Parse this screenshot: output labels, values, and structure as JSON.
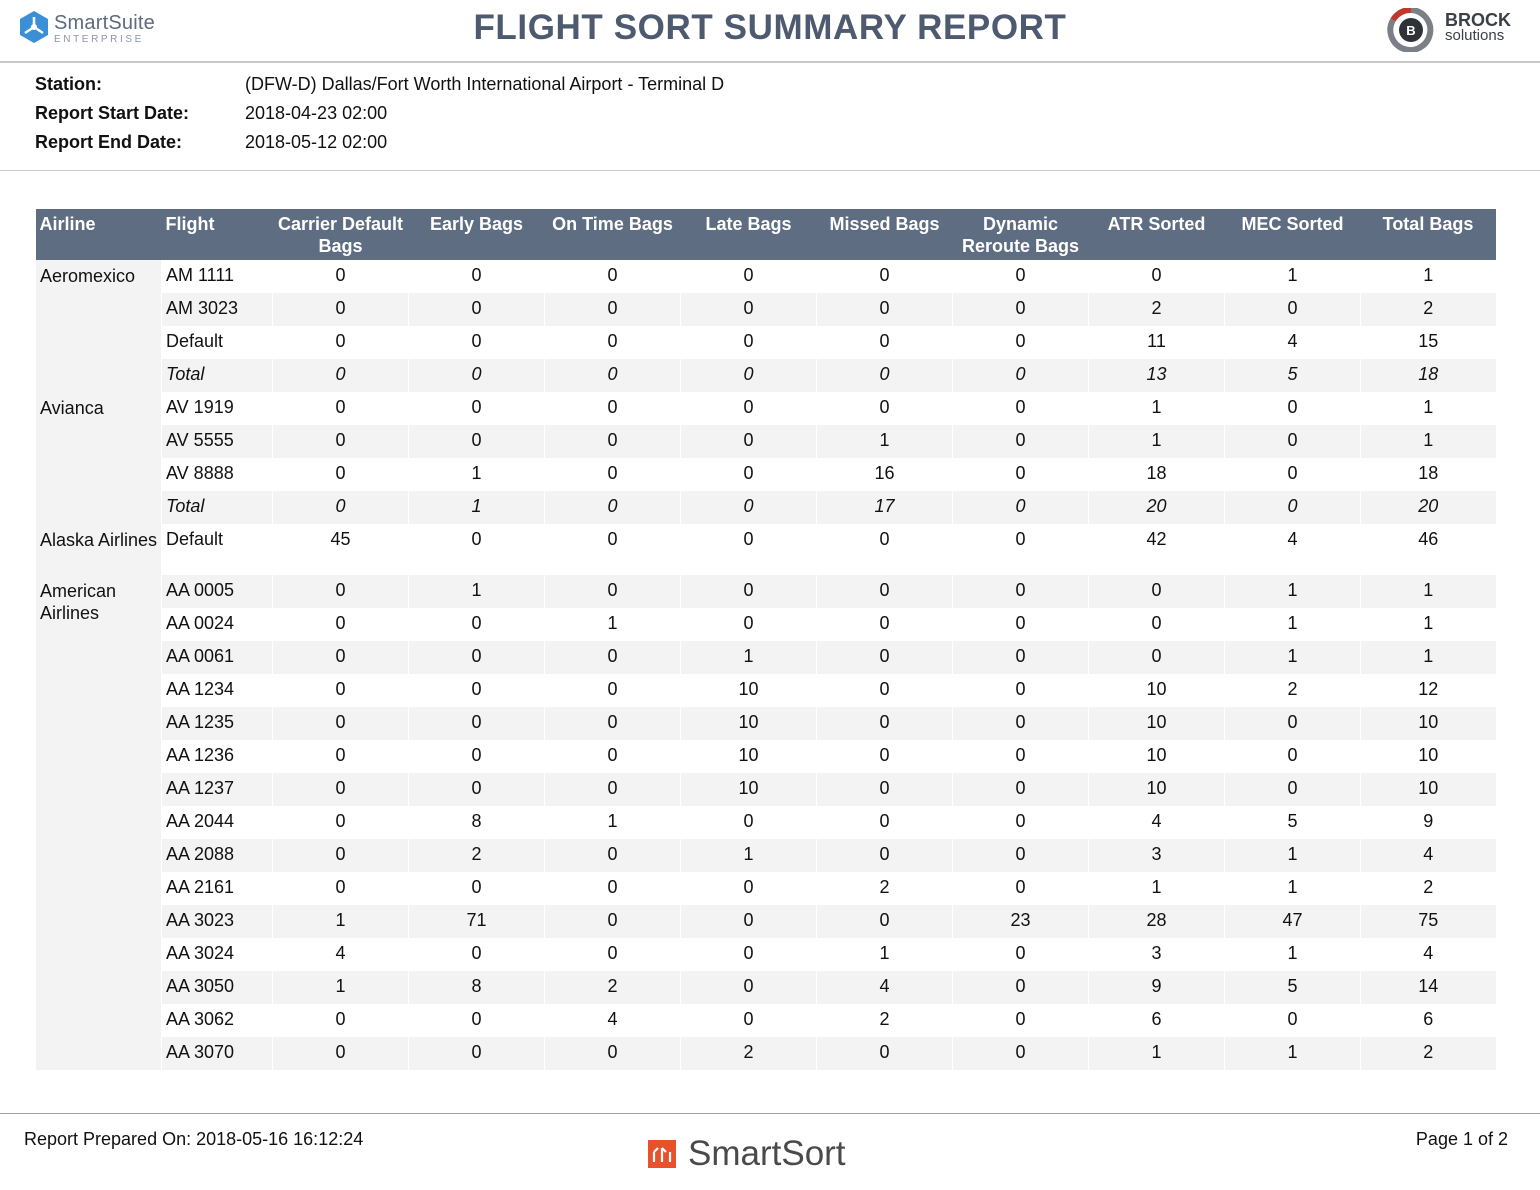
{
  "header": {
    "left_logo": {
      "name": "SmartSuite",
      "sub": "ENTERPRISE",
      "icon": "smartsuite-hex-icon",
      "color": "#3a8fd6"
    },
    "title": "FLIGHT SORT SUMMARY REPORT",
    "right_logo": {
      "name": "BROCK",
      "sub": "solutions",
      "icon": "brock-b-icon",
      "accent": "#c0392b"
    }
  },
  "info": {
    "station_label": "Station:",
    "station_value": "(DFW-D) Dallas/Fort Worth International Airport - Terminal D",
    "start_label": "Report Start Date:",
    "start_value": "2018-04-23 02:00",
    "end_label": "Report End Date:",
    "end_value": "2018-05-12 02:00"
  },
  "table": {
    "columns": [
      "Airline",
      "Flight",
      "Carrier Default Bags",
      "Early  Bags",
      "On Time Bags",
      "Late Bags",
      "Missed Bags",
      "Dynamic Reroute Bags",
      "ATR Sorted",
      "MEC Sorted",
      "Total  Bags"
    ],
    "header_color": "#5f6d83",
    "groups": [
      {
        "airline": "Aeromexico",
        "rows": [
          {
            "flight": "AM 1111",
            "values": [
              "0",
              "0",
              "0",
              "0",
              "0",
              "0",
              "0",
              "1",
              "1"
            ]
          },
          {
            "flight": "AM 3023",
            "values": [
              "0",
              "0",
              "0",
              "0",
              "0",
              "0",
              "2",
              "0",
              "2"
            ]
          },
          {
            "flight": "Default",
            "values": [
              "0",
              "0",
              "0",
              "0",
              "0",
              "0",
              "11",
              "4",
              "15"
            ]
          },
          {
            "flight": "Total",
            "values": [
              "0",
              "0",
              "0",
              "0",
              "0",
              "0",
              "13",
              "5",
              "18"
            ],
            "total": true
          }
        ]
      },
      {
        "airline": "Avianca",
        "rows": [
          {
            "flight": "AV 1919",
            "values": [
              "0",
              "0",
              "0",
              "0",
              "0",
              "0",
              "1",
              "0",
              "1"
            ]
          },
          {
            "flight": "AV 5555",
            "values": [
              "0",
              "0",
              "0",
              "0",
              "1",
              "0",
              "1",
              "0",
              "1"
            ]
          },
          {
            "flight": "AV 8888",
            "values": [
              "0",
              "1",
              "0",
              "0",
              "16",
              "0",
              "18",
              "0",
              "18"
            ]
          },
          {
            "flight": "Total",
            "values": [
              "0",
              "1",
              "0",
              "0",
              "17",
              "0",
              "20",
              "0",
              "20"
            ],
            "total": true
          }
        ]
      },
      {
        "airline": "Alaska Airlines",
        "rows": [
          {
            "flight": "Default",
            "values": [
              "45",
              "0",
              "0",
              "0",
              "0",
              "0",
              "42",
              "4",
              "46"
            ]
          }
        ]
      },
      {
        "airline": "American Airlines",
        "rows": [
          {
            "flight": "AA 0005",
            "values": [
              "0",
              "1",
              "0",
              "0",
              "0",
              "0",
              "0",
              "1",
              "1"
            ]
          },
          {
            "flight": "AA 0024",
            "values": [
              "0",
              "0",
              "1",
              "0",
              "0",
              "0",
              "0",
              "1",
              "1"
            ]
          },
          {
            "flight": "AA 0061",
            "values": [
              "0",
              "0",
              "0",
              "1",
              "0",
              "0",
              "0",
              "1",
              "1"
            ]
          },
          {
            "flight": "AA 1234",
            "values": [
              "0",
              "0",
              "0",
              "10",
              "0",
              "0",
              "10",
              "2",
              "12"
            ]
          },
          {
            "flight": "AA 1235",
            "values": [
              "0",
              "0",
              "0",
              "10",
              "0",
              "0",
              "10",
              "0",
              "10"
            ]
          },
          {
            "flight": "AA 1236",
            "values": [
              "0",
              "0",
              "0",
              "10",
              "0",
              "0",
              "10",
              "0",
              "10"
            ]
          },
          {
            "flight": "AA 1237",
            "values": [
              "0",
              "0",
              "0",
              "10",
              "0",
              "0",
              "10",
              "0",
              "10"
            ]
          },
          {
            "flight": "AA 2044",
            "values": [
              "0",
              "8",
              "1",
              "0",
              "0",
              "0",
              "4",
              "5",
              "9"
            ]
          },
          {
            "flight": "AA 2088",
            "values": [
              "0",
              "2",
              "0",
              "1",
              "0",
              "0",
              "3",
              "1",
              "4"
            ]
          },
          {
            "flight": "AA 2161",
            "values": [
              "0",
              "0",
              "0",
              "0",
              "2",
              "0",
              "1",
              "1",
              "2"
            ]
          },
          {
            "flight": "AA 3023",
            "values": [
              "1",
              "71",
              "0",
              "0",
              "0",
              "23",
              "28",
              "47",
              "75"
            ]
          },
          {
            "flight": "AA 3024",
            "values": [
              "4",
              "0",
              "0",
              "0",
              "1",
              "0",
              "3",
              "1",
              "4"
            ]
          },
          {
            "flight": "AA 3050",
            "values": [
              "1",
              "8",
              "2",
              "0",
              "4",
              "0",
              "9",
              "5",
              "14"
            ]
          },
          {
            "flight": "AA 3062",
            "values": [
              "0",
              "0",
              "4",
              "0",
              "2",
              "0",
              "6",
              "0",
              "6"
            ]
          },
          {
            "flight": "AA 3070",
            "values": [
              "0",
              "0",
              "0",
              "2",
              "0",
              "0",
              "1",
              "1",
              "2"
            ]
          }
        ]
      }
    ]
  },
  "footer": {
    "prepared": "Report Prepared On: 2018-05-16 16:12:24",
    "brand": "SmartSort",
    "brand_icon": "smartsort-icon",
    "brand_color": "#e8512a",
    "page": "Page 1 of 2"
  }
}
